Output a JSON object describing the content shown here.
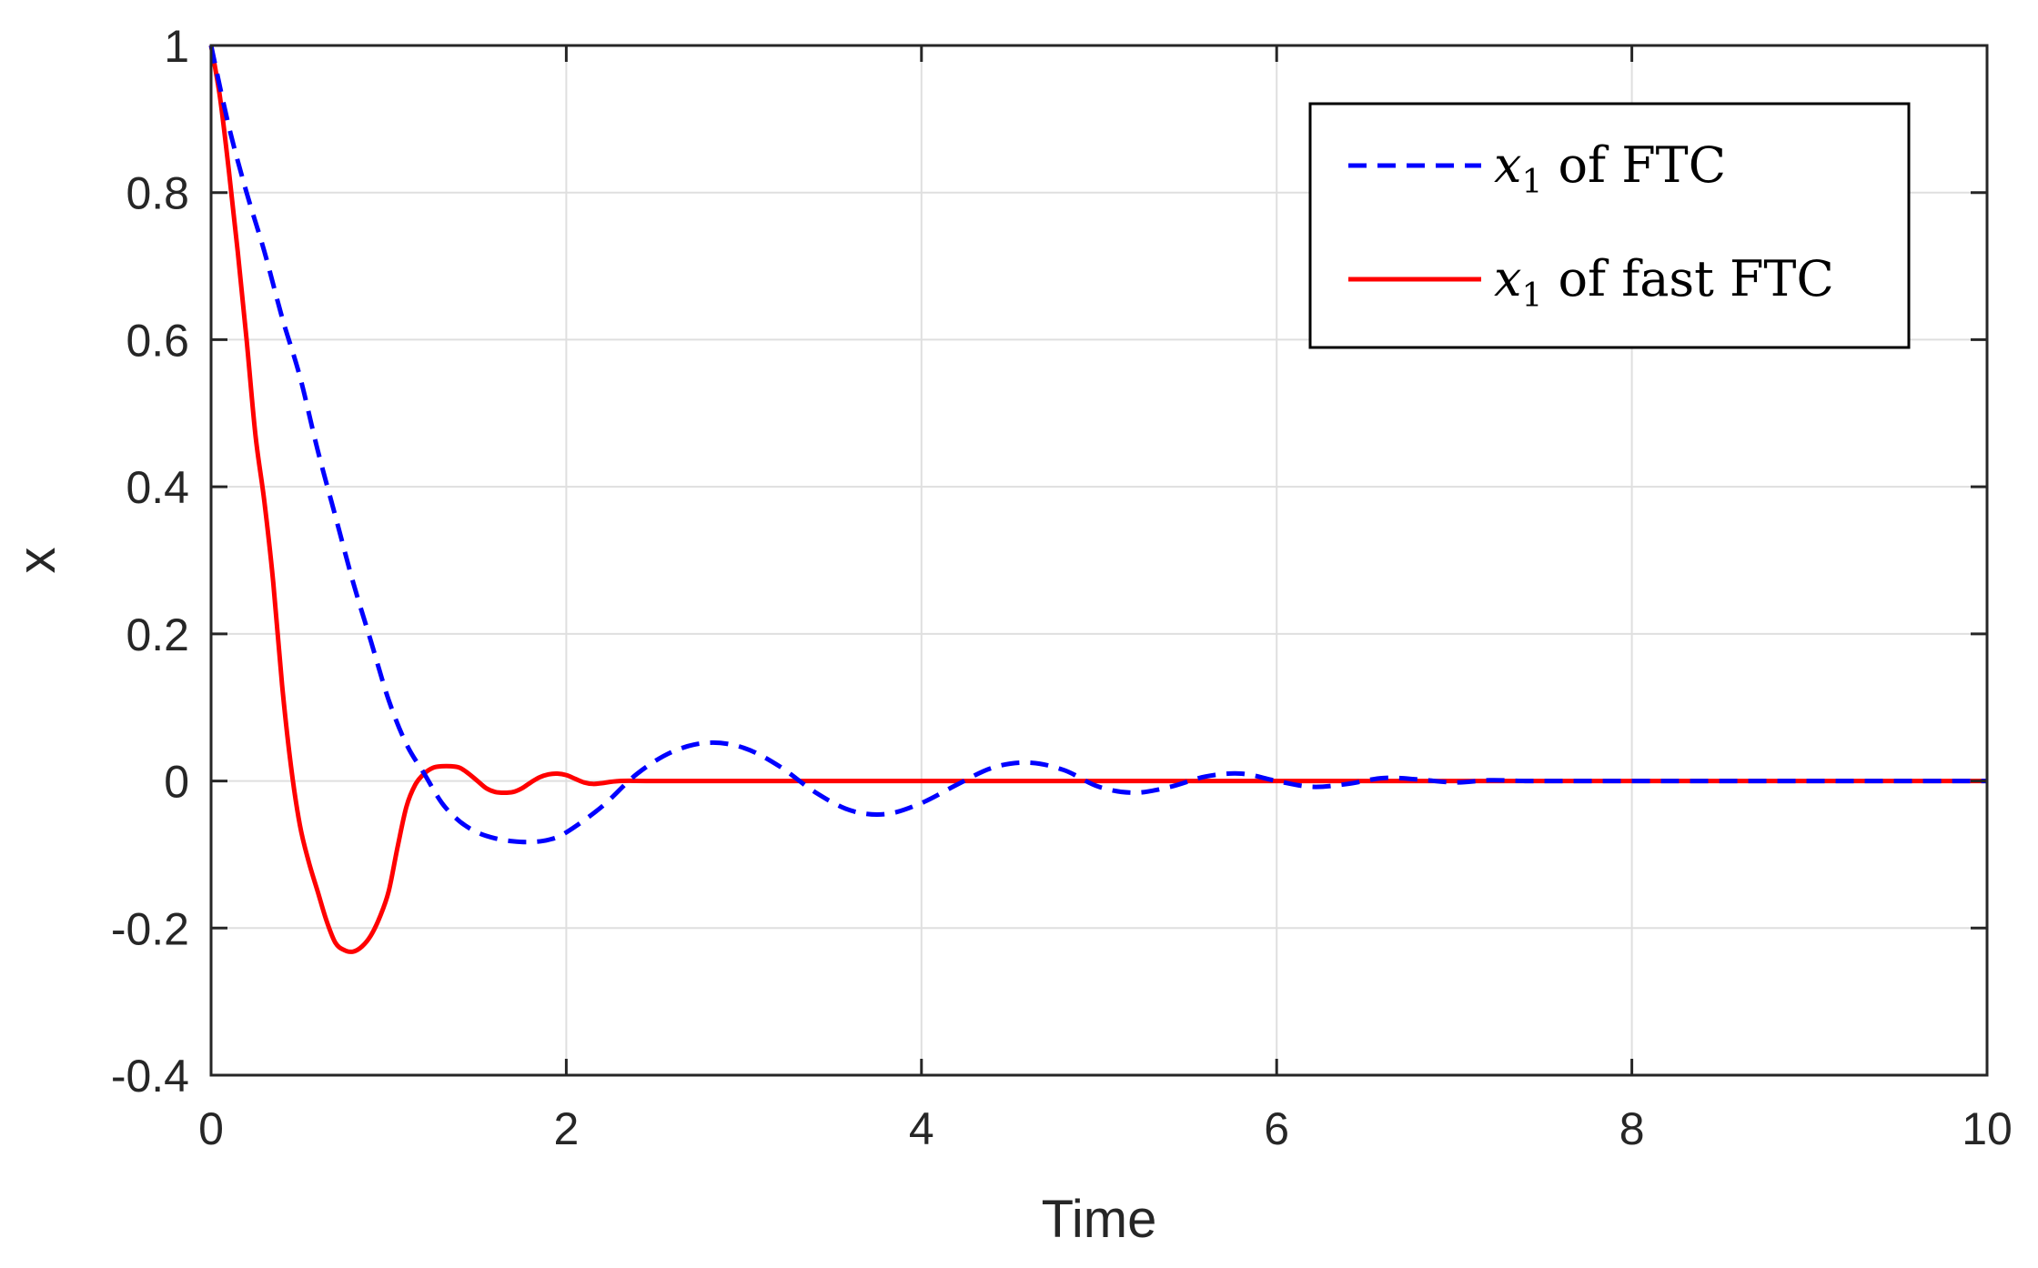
{
  "chart_data": {
    "type": "line",
    "title": "",
    "xlabel": "Time",
    "ylabel": "x",
    "xlim": [
      0,
      10
    ],
    "ylim": [
      -0.4,
      1
    ],
    "xticks": [
      0,
      2,
      4,
      6,
      8,
      10
    ],
    "xtick_labels": [
      "0",
      "2",
      "4",
      "6",
      "8",
      "10"
    ],
    "yticks": [
      -0.4,
      -0.2,
      0,
      0.2,
      0.4,
      0.6,
      0.8,
      1
    ],
    "ytick_labels": [
      "-0.4",
      "-0.2",
      "0",
      "0.2",
      "0.4",
      "0.6",
      "0.8",
      "1"
    ],
    "grid": true,
    "legend_position": "top-right",
    "series": [
      {
        "name": "x1 of FTC",
        "legend_main": "x",
        "legend_sub": "1",
        "legend_rest": " of FTC",
        "color": "#0000ff",
        "style": "dashed",
        "x": [
          0,
          0.1,
          0.2,
          0.3,
          0.4,
          0.5,
          0.6,
          0.7,
          0.8,
          0.9,
          1.0,
          1.1,
          1.2,
          1.3,
          1.4,
          1.5,
          1.6,
          1.7,
          1.8,
          1.9,
          2.0,
          2.2,
          2.4,
          2.6,
          2.8,
          3.0,
          3.2,
          3.4,
          3.6,
          3.8,
          4.0,
          4.2,
          4.4,
          4.6,
          4.8,
          5.0,
          5.2,
          5.4,
          5.6,
          5.8,
          6.0,
          6.2,
          6.4,
          6.6,
          6.8,
          7.0,
          7.2,
          7.4,
          7.6,
          7.8,
          8.0,
          8.5,
          9.0,
          9.5,
          10.0
        ],
        "y": [
          1.0,
          0.89,
          0.8,
          0.72,
          0.63,
          0.55,
          0.45,
          0.36,
          0.27,
          0.19,
          0.11,
          0.05,
          0.01,
          -0.03,
          -0.055,
          -0.07,
          -0.078,
          -0.082,
          -0.083,
          -0.08,
          -0.07,
          -0.035,
          0.01,
          0.04,
          0.052,
          0.045,
          0.02,
          -0.015,
          -0.04,
          -0.045,
          -0.03,
          -0.005,
          0.018,
          0.025,
          0.015,
          -0.008,
          -0.016,
          -0.008,
          0.006,
          0.01,
          0.0,
          -0.008,
          -0.004,
          0.004,
          0.002,
          -0.002,
          0.001,
          0.0,
          0.0,
          0.0,
          0.0,
          0.0,
          0.0,
          0.0,
          0.0
        ]
      },
      {
        "name": "x1 of fast FTC",
        "legend_main": "x",
        "legend_sub": "1",
        "legend_rest": " of fast FTC",
        "color": "#ff0000",
        "style": "solid",
        "x": [
          0,
          0.05,
          0.1,
          0.15,
          0.2,
          0.25,
          0.3,
          0.35,
          0.4,
          0.45,
          0.5,
          0.55,
          0.6,
          0.65,
          0.7,
          0.75,
          0.8,
          0.85,
          0.9,
          0.95,
          1.0,
          1.05,
          1.1,
          1.15,
          1.2,
          1.25,
          1.3,
          1.35,
          1.4,
          1.45,
          1.5,
          1.55,
          1.6,
          1.65,
          1.7,
          1.75,
          1.8,
          1.85,
          1.9,
          1.95,
          2.0,
          2.05,
          2.1,
          2.15,
          2.2,
          2.3,
          2.5,
          3.0,
          4.0,
          6.0,
          8.0,
          10.0
        ],
        "y": [
          1.0,
          0.93,
          0.83,
          0.72,
          0.6,
          0.47,
          0.38,
          0.27,
          0.13,
          0.02,
          -0.06,
          -0.11,
          -0.15,
          -0.19,
          -0.22,
          -0.23,
          -0.232,
          -0.225,
          -0.21,
          -0.185,
          -0.15,
          -0.09,
          -0.035,
          -0.005,
          0.01,
          0.018,
          0.02,
          0.02,
          0.018,
          0.01,
          0.0,
          -0.01,
          -0.015,
          -0.016,
          -0.015,
          -0.01,
          -0.002,
          0.005,
          0.009,
          0.01,
          0.008,
          0.003,
          -0.002,
          -0.004,
          -0.003,
          0.0,
          0.0,
          0.0,
          0.0,
          0.0,
          0.0,
          0.0
        ]
      }
    ]
  }
}
